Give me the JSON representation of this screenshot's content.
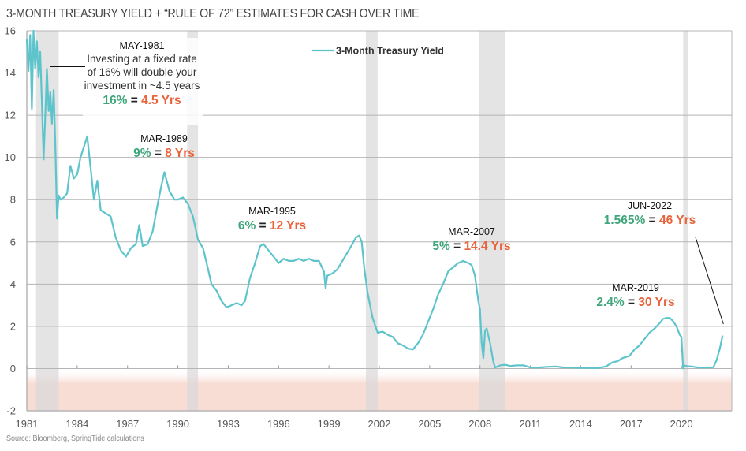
{
  "title": "3-MONTH TREASURY YIELD + “RULE OF 72” ESTIMATES FOR CASH OVER TIME",
  "source": "Source: Bloomberg, SpringTide calculations",
  "colors": {
    "line": "#5ec4cc",
    "rate": "#3fa57a",
    "years": "#e8623a",
    "equals": "#222222",
    "recession": "#e3e3e3",
    "negative_zone": "#f8ddd5",
    "grid": "#b5b5b5"
  },
  "chart_data": {
    "type": "line",
    "title": "3-MONTH TREASURY YIELD + “RULE OF 72” ESTIMATES FOR CASH OVER TIME",
    "xlabel": "",
    "ylabel": "",
    "xlim": [
      1981,
      2023
    ],
    "ylim": [
      -2,
      16
    ],
    "x_ticks": [
      1981,
      1984,
      1987,
      1990,
      1993,
      1996,
      1999,
      2002,
      2005,
      2008,
      2011,
      2014,
      2017,
      2020
    ],
    "y_ticks": [
      -2,
      0,
      2,
      4,
      6,
      8,
      10,
      12,
      14,
      16
    ],
    "grid": "horizontal",
    "legend": {
      "position": "top-center",
      "entries": [
        "3-Month Treasury Yield"
      ]
    },
    "shaded_regions": {
      "recessions": [
        [
          1981.55,
          1982.9
        ],
        [
          1990.55,
          1991.2
        ],
        [
          2001.2,
          2001.9
        ],
        [
          2007.95,
          2009.5
        ],
        [
          2020.1,
          2020.4
        ]
      ],
      "negative_yield_zone": [
        -2,
        0
      ]
    },
    "series": [
      {
        "name": "3-Month Treasury Yield",
        "x": [
          1981.0,
          1981.1,
          1981.2,
          1981.3,
          1981.4,
          1981.5,
          1981.6,
          1981.7,
          1981.8,
          1981.9,
          1982.0,
          1982.1,
          1982.2,
          1982.3,
          1982.4,
          1982.5,
          1982.6,
          1982.7,
          1982.8,
          1982.9,
          1983.0,
          1983.2,
          1983.4,
          1983.6,
          1983.8,
          1984.0,
          1984.2,
          1984.4,
          1984.6,
          1984.8,
          1985.0,
          1985.2,
          1985.4,
          1985.6,
          1985.8,
          1986.0,
          1986.3,
          1986.6,
          1986.9,
          1987.2,
          1987.5,
          1987.7,
          1987.9,
          1988.2,
          1988.5,
          1988.8,
          1989.0,
          1989.2,
          1989.5,
          1989.8,
          1990.0,
          1990.3,
          1990.6,
          1990.9,
          1991.2,
          1991.5,
          1991.8,
          1992.0,
          1992.3,
          1992.6,
          1992.9,
          1993.2,
          1993.5,
          1993.8,
          1994.0,
          1994.3,
          1994.6,
          1994.9,
          1995.1,
          1995.4,
          1995.7,
          1996.0,
          1996.3,
          1996.6,
          1996.9,
          1997.2,
          1997.5,
          1997.8,
          1998.1,
          1998.4,
          1998.7,
          1998.8,
          1998.9,
          1999.2,
          1999.5,
          1999.8,
          2000.1,
          2000.4,
          2000.6,
          2000.8,
          2000.95,
          2001.1,
          2001.3,
          2001.6,
          2001.9,
          2002.2,
          2002.5,
          2002.8,
          2003.1,
          2003.4,
          2003.7,
          2004.0,
          2004.3,
          2004.6,
          2004.9,
          2005.2,
          2005.5,
          2005.8,
          2006.1,
          2006.4,
          2006.7,
          2007.0,
          2007.3,
          2007.5,
          2007.7,
          2007.9,
          2008.0,
          2008.1,
          2008.2,
          2008.3,
          2008.4,
          2008.6,
          2008.8,
          2008.9,
          2009.2,
          2009.5,
          2009.8,
          2010.2,
          2010.6,
          2011.0,
          2011.5,
          2012.0,
          2012.5,
          2013.0,
          2013.5,
          2014.0,
          2014.5,
          2015.0,
          2015.5,
          2015.9,
          2016.2,
          2016.5,
          2016.9,
          2017.2,
          2017.5,
          2017.8,
          2018.1,
          2018.4,
          2018.7,
          2018.9,
          2019.1,
          2019.3,
          2019.5,
          2019.7,
          2019.9,
          2020.0,
          2020.1,
          2020.15,
          2020.3,
          2020.6,
          2021.0,
          2021.5,
          2021.9,
          2022.1,
          2022.3,
          2022.45
        ],
        "values": [
          15.6,
          14.1,
          15.8,
          12.3,
          16.0,
          14.2,
          15.5,
          13.8,
          15.0,
          12.5,
          9.9,
          12.0,
          14.2,
          12.2,
          13.1,
          11.6,
          13.2,
          10.5,
          7.1,
          8.2,
          8.0,
          8.1,
          8.3,
          9.6,
          9.0,
          9.2,
          10.0,
          10.5,
          11.0,
          9.5,
          8.0,
          8.9,
          7.5,
          7.4,
          7.3,
          7.2,
          6.2,
          5.6,
          5.3,
          5.7,
          5.9,
          6.8,
          5.8,
          5.9,
          6.5,
          7.8,
          8.6,
          9.3,
          8.4,
          8.0,
          8.0,
          8.1,
          7.8,
          7.2,
          6.1,
          5.7,
          4.7,
          4.0,
          3.7,
          3.2,
          2.9,
          3.0,
          3.1,
          3.0,
          3.2,
          4.3,
          5.0,
          5.8,
          5.9,
          5.6,
          5.3,
          5.0,
          5.2,
          5.1,
          5.1,
          5.2,
          5.1,
          5.2,
          5.1,
          5.1,
          4.6,
          3.8,
          4.4,
          4.5,
          4.7,
          5.1,
          5.5,
          5.9,
          6.2,
          6.3,
          6.0,
          4.8,
          3.6,
          2.4,
          1.7,
          1.75,
          1.6,
          1.5,
          1.2,
          1.1,
          0.95,
          0.9,
          1.2,
          1.6,
          2.2,
          2.8,
          3.5,
          4.0,
          4.6,
          4.8,
          5.0,
          5.1,
          5.0,
          4.9,
          4.4,
          3.2,
          2.8,
          1.2,
          0.5,
          1.8,
          1.9,
          1.2,
          0.3,
          0.05,
          0.15,
          0.18,
          0.12,
          0.15,
          0.15,
          0.05,
          0.05,
          0.08,
          0.1,
          0.05,
          0.05,
          0.03,
          0.03,
          0.02,
          0.1,
          0.3,
          0.35,
          0.5,
          0.6,
          0.9,
          1.1,
          1.4,
          1.7,
          1.9,
          2.15,
          2.35,
          2.4,
          2.4,
          2.25,
          2.0,
          1.6,
          1.5,
          0.0,
          0.15,
          0.12,
          0.1,
          0.05,
          0.05,
          0.06,
          0.4,
          1.0,
          1.565
        ]
      }
    ],
    "annotations": [
      {
        "date": "MAY-1981",
        "lines": [
          "Investing at a fixed rate",
          "of 16% will double your",
          "investment in ~4.5 years"
        ],
        "rate": "16%",
        "years": "4.5 Yrs"
      },
      {
        "date": "MAR-1989",
        "lines": [],
        "rate": "9%",
        "years": "8 Yrs"
      },
      {
        "date": "MAR-1995",
        "lines": [],
        "rate": "6%",
        "years": "12 Yrs"
      },
      {
        "date": "MAR-2007",
        "lines": [],
        "rate": "5%",
        "years": "14.4 Yrs"
      },
      {
        "date": "MAR-2019",
        "lines": [],
        "rate": "2.4%",
        "years": "30 Yrs"
      },
      {
        "date": "JUN-2022",
        "lines": [],
        "rate": "1.565%",
        "years": "46 Yrs"
      }
    ],
    "equals_sign": "="
  }
}
